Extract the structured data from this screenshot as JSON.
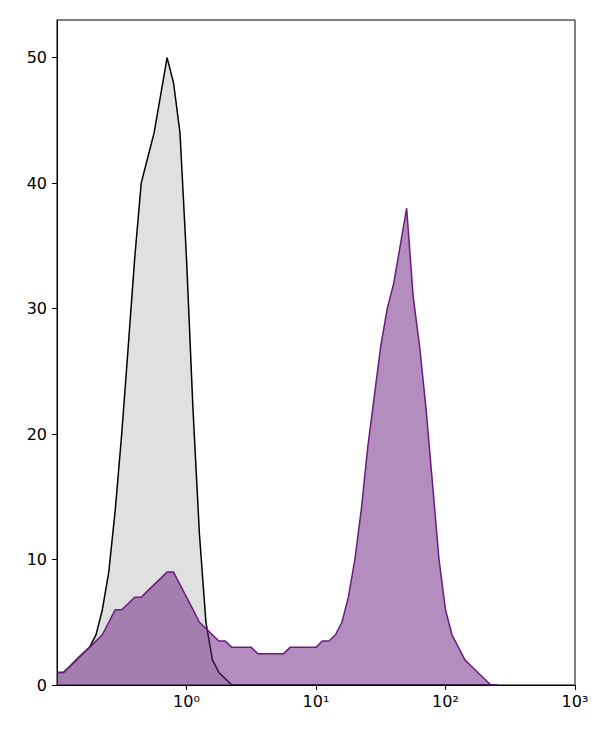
{
  "chart_data": {
    "type": "area",
    "log": "x",
    "grid": false,
    "xlim": [
      0.1,
      1000
    ],
    "ylim": [
      0,
      53
    ],
    "xticks": [
      {
        "value": 1,
        "label": "10⁰"
      },
      {
        "value": 10,
        "label": "10¹"
      },
      {
        "value": 100,
        "label": "10²"
      },
      {
        "value": 1000,
        "label": "10³"
      }
    ],
    "yticks": [
      0,
      10,
      20,
      30,
      40,
      50
    ],
    "x": [
      0.1,
      0.112,
      0.126,
      0.141,
      0.158,
      0.178,
      0.2,
      0.224,
      0.251,
      0.282,
      0.316,
      0.355,
      0.398,
      0.447,
      0.501,
      0.562,
      0.631,
      0.708,
      0.794,
      0.891,
      1,
      1.122,
      1.259,
      1.413,
      1.585,
      1.778,
      1.995,
      2.239,
      2.512,
      2.818,
      3.162,
      3.548,
      3.981,
      4.467,
      5.012,
      5.623,
      6.31,
      7.079,
      7.943,
      8.913,
      10,
      11.22,
      12.59,
      14.13,
      15.85,
      17.78,
      19.95,
      22.39,
      25.12,
      28.18,
      31.62,
      35.48,
      39.81,
      44.67,
      50.12,
      56.23,
      63.1,
      70.79,
      79.43,
      89.13,
      100,
      112.2,
      125.9,
      141.3,
      158.5,
      177.8,
      199.5,
      223.9,
      251.2
    ],
    "series": [
      {
        "color": "#000000",
        "values": [
          1,
          1,
          1.5,
          2,
          2.5,
          3,
          4,
          6,
          9,
          14,
          20,
          27,
          34,
          40,
          42,
          44,
          47,
          50,
          48,
          44,
          34,
          22,
          12,
          5,
          2,
          1,
          0.5,
          0,
          0,
          0,
          0,
          0,
          0,
          0,
          0,
          0,
          0,
          0,
          0,
          0,
          0,
          0,
          0,
          0,
          0,
          0,
          0,
          0,
          0,
          0,
          0,
          0,
          0,
          0,
          0,
          0,
          0,
          0,
          0,
          0,
          0,
          0,
          0,
          0,
          0,
          0,
          0,
          0,
          0
        ]
      },
      {
        "color": "#6a1b7f",
        "values": [
          1,
          1,
          1.5,
          2,
          2.5,
          3,
          3.5,
          4,
          5,
          6,
          6,
          6.5,
          7,
          7,
          7.5,
          8,
          8.5,
          9,
          9,
          8,
          7,
          6,
          5,
          4.5,
          4,
          3.5,
          3.5,
          3,
          3,
          3,
          3,
          2.5,
          2.5,
          2.5,
          2.5,
          2.5,
          3,
          3,
          3,
          3,
          3,
          3.5,
          3.5,
          4,
          5,
          7,
          10,
          14,
          19,
          23,
          27,
          30,
          32,
          35,
          38,
          31,
          27,
          22,
          16,
          10,
          6,
          4,
          3,
          2,
          1.5,
          1,
          0.5,
          0,
          0
        ]
      }
    ]
  }
}
